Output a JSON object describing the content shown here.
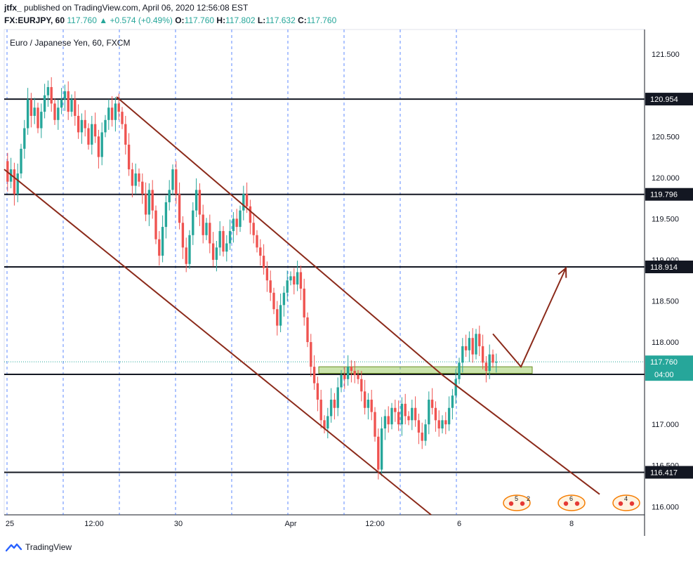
{
  "header": {
    "author": "jtfx_",
    "published_text": "published on TradingView.com, April 06, 2020 12:56:08 EST",
    "symbol": "FX:EURJPY, 60",
    "last": "117.760",
    "change": "+0.574 (+0.49%)",
    "open_label": "O:",
    "open": "117.760",
    "high_label": "H:",
    "high": "117.802",
    "low_label": "L:",
    "low": "117.632",
    "close_label": "C:",
    "close": "117.760"
  },
  "footer": {
    "brand": "TradingView"
  },
  "colors": {
    "up": "#26a69a",
    "down": "#ef5350",
    "trendline": "#8b2a1a",
    "level_line": "#131722",
    "grid_dash": "#2962ff",
    "zone_fill": "#8bc34a",
    "last_price": "#26a69a"
  },
  "chart_data": {
    "type": "candlestick",
    "title": "Euro / Japanese Yen, 60, FXCM",
    "ylim": [
      115.9,
      121.8
    ],
    "y_ticks": [
      116.0,
      116.5,
      117.0,
      117.5,
      118.0,
      118.5,
      119.0,
      119.5,
      120.0,
      120.5,
      121.0,
      121.5
    ],
    "y_tick_labels": [
      "116.000",
      "116.500",
      "117.000",
      "",
      "118.000",
      "118.500",
      "119.000",
      "119.500",
      "120.000",
      "120.500",
      "",
      "121.500"
    ],
    "x_labels": [
      {
        "label": "25",
        "t": 0.5
      },
      {
        "label": "12:00",
        "t": 8.0
      },
      {
        "label": "30",
        "t": 15.5
      },
      {
        "label": "Apr",
        "t": 25.5
      },
      {
        "label": "12:00",
        "t": 33.0
      },
      {
        "label": "6",
        "t": 40.5
      },
      {
        "label": "8",
        "t": 50.5
      }
    ],
    "session_dividers": [
      0,
      5,
      10,
      15,
      20,
      25,
      30,
      35,
      40
    ],
    "horizontal_levels": [
      120.954,
      119.796,
      118.914,
      117.608,
      116.417
    ],
    "last_price": {
      "value": 117.76,
      "countdown": "04:00"
    },
    "price_path": [
      [
        0.0,
        120.2
      ],
      [
        0.3,
        119.95
      ],
      [
        0.6,
        120.1
      ],
      [
        0.9,
        119.8
      ],
      [
        1.2,
        120.05
      ],
      [
        1.5,
        120.35
      ],
      [
        1.8,
        120.6
      ],
      [
        2.1,
        120.95
      ],
      [
        2.4,
        120.75
      ],
      [
        2.7,
        120.85
      ],
      [
        3.0,
        120.6
      ],
      [
        3.3,
        120.8
      ],
      [
        3.6,
        121.0
      ],
      [
        3.9,
        121.1
      ],
      [
        4.2,
        120.9
      ],
      [
        4.5,
        120.7
      ],
      [
        4.8,
        120.85
      ],
      [
        5.1,
        120.95
      ],
      [
        5.4,
        121.05
      ],
      [
        5.7,
        120.8
      ],
      [
        6.0,
        120.95
      ],
      [
        6.3,
        120.75
      ],
      [
        6.6,
        120.55
      ],
      [
        6.9,
        120.7
      ],
      [
        7.2,
        120.6
      ],
      [
        7.5,
        120.4
      ],
      [
        7.8,
        120.65
      ],
      [
        8.1,
        120.5
      ],
      [
        8.4,
        120.25
      ],
      [
        8.7,
        120.55
      ],
      [
        9.0,
        120.7
      ],
      [
        9.3,
        120.85
      ],
      [
        9.6,
        120.7
      ],
      [
        9.9,
        120.9
      ],
      [
        10.2,
        120.8
      ],
      [
        10.5,
        120.65
      ],
      [
        10.8,
        120.4
      ],
      [
        11.1,
        120.1
      ],
      [
        11.4,
        119.9
      ],
      [
        11.7,
        120.05
      ],
      [
        12.0,
        119.95
      ],
      [
        12.3,
        119.8
      ],
      [
        12.6,
        119.55
      ],
      [
        12.9,
        119.85
      ],
      [
        13.2,
        119.6
      ],
      [
        13.5,
        119.25
      ],
      [
        13.8,
        119.05
      ],
      [
        14.1,
        119.4
      ],
      [
        14.4,
        119.7
      ],
      [
        14.7,
        119.85
      ],
      [
        15.0,
        120.1
      ],
      [
        15.3,
        119.8
      ],
      [
        15.6,
        119.45
      ],
      [
        15.9,
        119.15
      ],
      [
        16.2,
        118.95
      ],
      [
        16.5,
        119.3
      ],
      [
        16.8,
        119.6
      ],
      [
        17.1,
        119.85
      ],
      [
        17.4,
        119.55
      ],
      [
        17.7,
        119.3
      ],
      [
        18.0,
        119.45
      ],
      [
        18.3,
        119.2
      ],
      [
        18.6,
        119.0
      ],
      [
        18.9,
        119.15
      ],
      [
        19.2,
        119.35
      ],
      [
        19.5,
        119.1
      ],
      [
        19.8,
        119.2
      ],
      [
        20.1,
        119.35
      ],
      [
        20.4,
        119.5
      ],
      [
        20.7,
        119.4
      ],
      [
        21.0,
        119.6
      ],
      [
        21.3,
        119.8
      ],
      [
        21.6,
        119.65
      ],
      [
        21.9,
        119.45
      ],
      [
        22.2,
        119.3
      ],
      [
        22.5,
        119.15
      ],
      [
        22.8,
        119.05
      ],
      [
        23.1,
        118.9
      ],
      [
        23.4,
        118.75
      ],
      [
        23.7,
        118.6
      ],
      [
        24.0,
        118.4
      ],
      [
        24.3,
        118.2
      ],
      [
        24.6,
        118.45
      ],
      [
        24.9,
        118.6
      ],
      [
        25.2,
        118.75
      ],
      [
        25.5,
        118.8
      ],
      [
        25.8,
        118.7
      ],
      [
        26.1,
        118.85
      ],
      [
        26.4,
        118.65
      ],
      [
        26.7,
        118.3
      ],
      [
        27.0,
        118.0
      ],
      [
        27.3,
        117.7
      ],
      [
        27.6,
        117.5
      ],
      [
        27.9,
        117.3
      ],
      [
        28.2,
        117.05
      ],
      [
        28.5,
        116.95
      ],
      [
        28.8,
        117.1
      ],
      [
        29.1,
        117.3
      ],
      [
        29.4,
        117.2
      ],
      [
        29.7,
        117.45
      ],
      [
        30.0,
        117.6
      ],
      [
        30.3,
        117.55
      ],
      [
        30.6,
        117.7
      ],
      [
        30.9,
        117.65
      ],
      [
        31.2,
        117.6
      ],
      [
        31.5,
        117.55
      ],
      [
        31.8,
        117.4
      ],
      [
        32.1,
        117.2
      ],
      [
        32.4,
        117.3
      ],
      [
        32.7,
        117.15
      ],
      [
        33.0,
        116.85
      ],
      [
        33.3,
        116.45
      ],
      [
        33.6,
        116.95
      ],
      [
        33.9,
        117.1
      ],
      [
        34.2,
        117.0
      ],
      [
        34.5,
        117.2
      ],
      [
        34.8,
        117.15
      ],
      [
        35.1,
        117.0
      ],
      [
        35.4,
        117.25
      ],
      [
        35.7,
        117.1
      ],
      [
        36.0,
        117.05
      ],
      [
        36.3,
        117.2
      ],
      [
        36.6,
        117.05
      ],
      [
        36.9,
        116.9
      ],
      [
        37.2,
        116.8
      ],
      [
        37.5,
        117.0
      ],
      [
        37.8,
        117.3
      ],
      [
        38.1,
        117.2
      ],
      [
        38.4,
        117.05
      ],
      [
        38.7,
        116.95
      ],
      [
        39.0,
        117.05
      ],
      [
        39.3,
        117.0
      ],
      [
        39.6,
        117.2
      ],
      [
        39.9,
        117.35
      ],
      [
        40.2,
        117.55
      ],
      [
        40.5,
        117.75
      ],
      [
        40.8,
        117.95
      ],
      [
        41.1,
        117.9
      ],
      [
        41.4,
        118.05
      ],
      [
        41.7,
        117.85
      ],
      [
        42.0,
        118.1
      ],
      [
        42.3,
        117.95
      ],
      [
        42.6,
        117.75
      ],
      [
        42.9,
        117.65
      ],
      [
        43.2,
        117.85
      ],
      [
        43.5,
        117.75
      ],
      [
        43.8,
        117.76
      ]
    ],
    "drawings": {
      "upper_channel": [
        [
          10.0,
          120.98
        ],
        [
          39.0,
          117.6
        ],
        [
          53.0,
          116.15
        ]
      ],
      "lower_channel": [
        [
          0.0,
          120.1
        ],
        [
          38.0,
          115.9
        ]
      ],
      "support_zone": {
        "t0": 28.0,
        "t1": 47.0,
        "y0": 117.62,
        "y1": 117.7
      },
      "arrow": {
        "points": [
          [
            43.5,
            118.1
          ],
          [
            46.0,
            117.7
          ],
          [
            50.0,
            118.9
          ]
        ]
      },
      "pattern_markers": [
        {
          "label": "5",
          "sub": "2"
        },
        {
          "label": "6",
          "sub": ""
        },
        {
          "label": "4",
          "sub": ""
        }
      ]
    }
  }
}
